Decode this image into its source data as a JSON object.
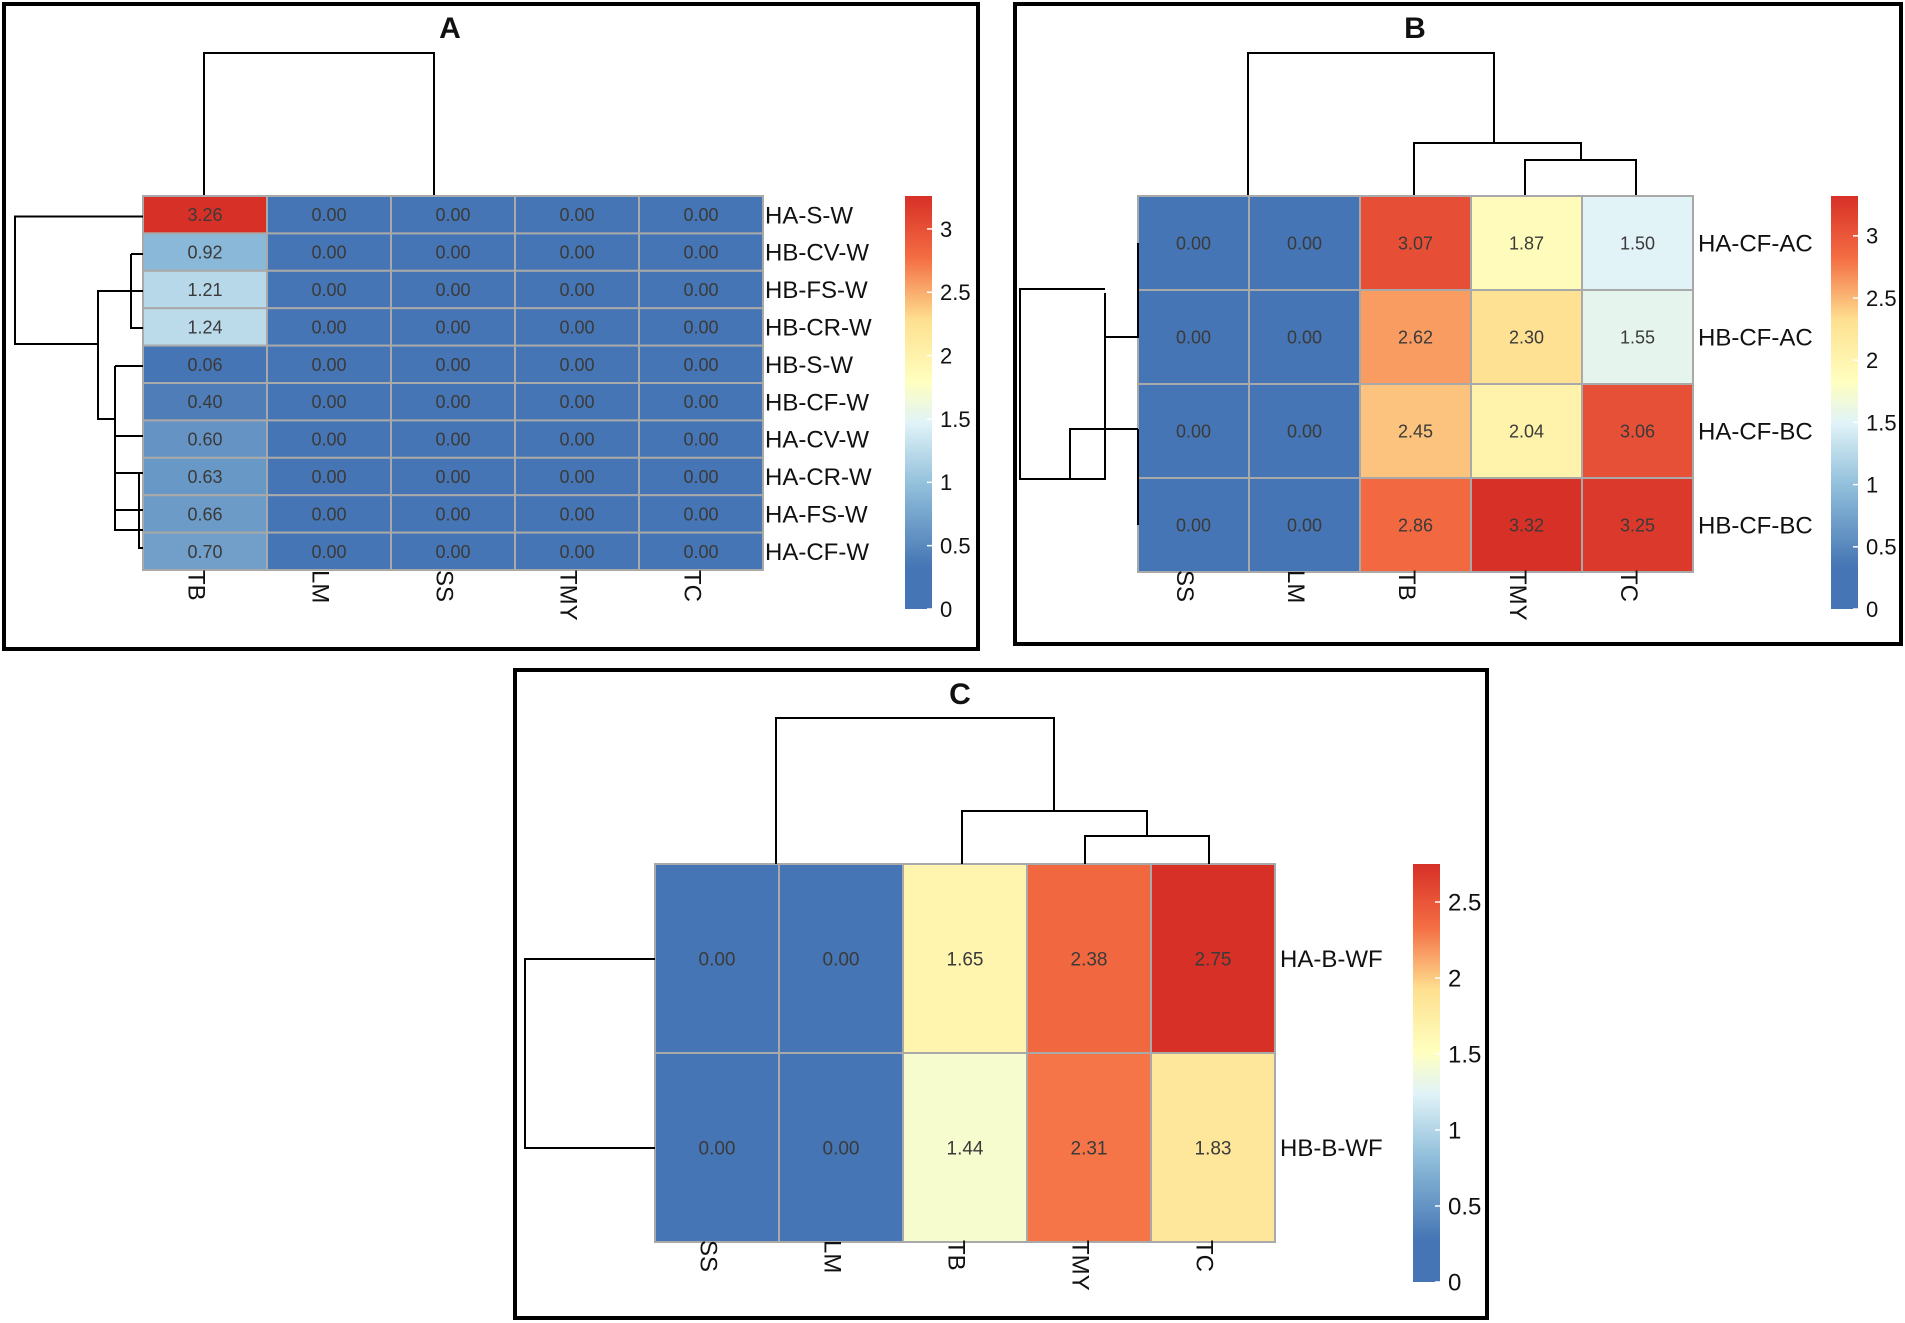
{
  "chart_data": [
    {
      "type": "heatmap",
      "panel": "A",
      "title": "A",
      "columns": [
        "TB",
        "LM",
        "SS",
        "TMY",
        "TC"
      ],
      "rows": [
        "HA-S-W",
        "HB-CV-W",
        "HB-FS-W",
        "HB-CR-W",
        "HB-S-W",
        "HB-CF-W",
        "HA-CV-W",
        "HA-CR-W",
        "HA-FS-W",
        "HA-CF-W"
      ],
      "values": [
        [
          3.26,
          0.0,
          0.0,
          0.0,
          0.0
        ],
        [
          0.92,
          0.0,
          0.0,
          0.0,
          0.0
        ],
        [
          1.21,
          0.0,
          0.0,
          0.0,
          0.0
        ],
        [
          1.24,
          0.0,
          0.0,
          0.0,
          0.0
        ],
        [
          0.06,
          0.0,
          0.0,
          0.0,
          0.0
        ],
        [
          0.4,
          0.0,
          0.0,
          0.0,
          0.0
        ],
        [
          0.6,
          0.0,
          0.0,
          0.0,
          0.0
        ],
        [
          0.63,
          0.0,
          0.0,
          0.0,
          0.0
        ],
        [
          0.66,
          0.0,
          0.0,
          0.0,
          0.0
        ],
        [
          0.7,
          0.0,
          0.0,
          0.0,
          0.0
        ]
      ],
      "color_range": [
        0,
        3.26
      ],
      "colorbar_ticks": [
        "0",
        "0.5",
        "1",
        "1.5",
        "2",
        "2.5",
        "3"
      ]
    },
    {
      "type": "heatmap",
      "panel": "B",
      "title": "B",
      "columns": [
        "SS",
        "LM",
        "TB",
        "TMY",
        "TC"
      ],
      "rows": [
        "HA-CF-AC",
        "HB-CF-AC",
        "HA-CF-BC",
        "HB-CF-BC"
      ],
      "values": [
        [
          0.0,
          0.0,
          3.07,
          1.87,
          1.5
        ],
        [
          0.0,
          0.0,
          2.62,
          2.3,
          1.55
        ],
        [
          0.0,
          0.0,
          2.45,
          2.04,
          3.06
        ],
        [
          0.0,
          0.0,
          2.86,
          3.32,
          3.25
        ]
      ],
      "color_range": [
        0,
        3.32
      ],
      "colorbar_ticks": [
        "0",
        "0.5",
        "1",
        "1.5",
        "2",
        "2.5",
        "3"
      ]
    },
    {
      "type": "heatmap",
      "panel": "C",
      "title": "C",
      "columns": [
        "SS",
        "LM",
        "TB",
        "TMY",
        "TC"
      ],
      "rows": [
        "HA-B-WF",
        "HB-B-WF"
      ],
      "values": [
        [
          0.0,
          0.0,
          1.65,
          2.38,
          2.75
        ],
        [
          0.0,
          0.0,
          1.44,
          2.31,
          1.83
        ]
      ],
      "color_range": [
        0,
        2.75
      ],
      "colorbar_ticks": [
        "0",
        "0.5",
        "1",
        "1.5",
        "2",
        "2.5"
      ]
    }
  ]
}
